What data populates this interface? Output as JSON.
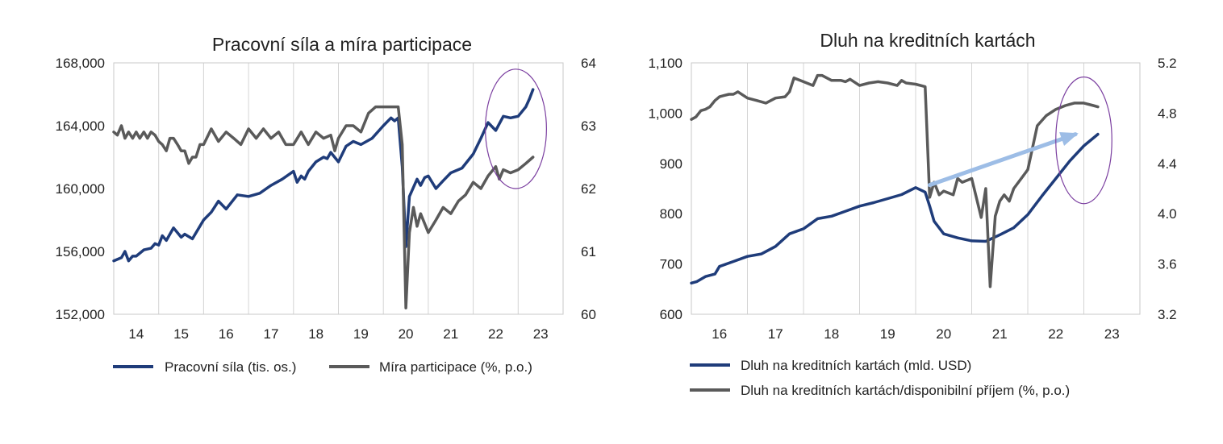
{
  "colors": {
    "series1": "#1f3c7a",
    "series2": "#5a5a5a",
    "annotation": "#7b3fa0",
    "arrow": "#9dbde6",
    "grid": "#d4d4d4",
    "frame": "#c8c8c8"
  },
  "chart_data": [
    {
      "type": "line",
      "title": "Pracovní síla a míra participace",
      "xlabel": "",
      "ylabel": "",
      "x_ticks": [
        "14",
        "15",
        "16",
        "17",
        "18",
        "19",
        "20",
        "21",
        "22",
        "23"
      ],
      "xlim": [
        13.5,
        23.5
      ],
      "ylim_left": [
        152000,
        168000
      ],
      "ylim_right": [
        60,
        64
      ],
      "left_ticks": [
        "152,000",
        "156,000",
        "160,000",
        "164,000",
        "168,000"
      ],
      "right_ticks": [
        "60",
        "61",
        "62",
        "63",
        "64"
      ],
      "grid": "vertical",
      "legend": "bottom",
      "annotation": {
        "type": "ellipse",
        "x_center": 22.45,
        "y_center_left": 163800,
        "x_radius": 0.68,
        "y_radius_left": 3800
      },
      "series": [
        {
          "name": "Pracovní síla (tis. os.)",
          "axis": "left",
          "x": [
            13.5,
            13.67,
            13.75,
            13.83,
            13.92,
            14.0,
            14.17,
            14.33,
            14.42,
            14.5,
            14.58,
            14.67,
            14.83,
            15.0,
            15.08,
            15.25,
            15.5,
            15.67,
            15.83,
            16.0,
            16.25,
            16.5,
            16.75,
            17.0,
            17.25,
            17.5,
            17.58,
            17.67,
            17.75,
            17.83,
            18.0,
            18.17,
            18.25,
            18.33,
            18.5,
            18.67,
            18.83,
            19.0,
            19.25,
            19.5,
            19.67,
            19.75,
            19.83,
            19.92,
            20.0,
            20.08,
            20.25,
            20.33,
            20.42,
            20.5,
            20.67,
            20.83,
            21.0,
            21.25,
            21.5,
            21.67,
            21.83,
            22.0,
            22.17,
            22.33,
            22.5,
            22.67,
            22.75,
            22.83
          ],
          "values": [
            155400,
            155600,
            156000,
            155400,
            155700,
            155700,
            156100,
            156200,
            156500,
            156400,
            157000,
            156700,
            157500,
            156900,
            157100,
            156800,
            158000,
            158500,
            159200,
            158700,
            159600,
            159500,
            159700,
            160200,
            160600,
            161100,
            160400,
            160800,
            160600,
            161100,
            161700,
            162000,
            161900,
            162300,
            161700,
            162700,
            163000,
            162800,
            163200,
            164000,
            164500,
            164300,
            164500,
            161400,
            156300,
            159500,
            160600,
            160200,
            160700,
            160800,
            160000,
            160500,
            161000,
            161300,
            162200,
            163200,
            164200,
            163700,
            164600,
            164500,
            164600,
            165200,
            165700,
            166300
          ]
        },
        {
          "name": "Míra participace (%, p.o.)",
          "axis": "right",
          "x": [
            13.5,
            13.58,
            13.67,
            13.75,
            13.83,
            13.92,
            14.0,
            14.08,
            14.17,
            14.25,
            14.33,
            14.42,
            14.5,
            14.58,
            14.67,
            14.75,
            14.83,
            14.92,
            15.0,
            15.08,
            15.17,
            15.25,
            15.33,
            15.42,
            15.5,
            15.67,
            15.83,
            16.0,
            16.17,
            16.33,
            16.5,
            16.67,
            16.83,
            17.0,
            17.17,
            17.33,
            17.5,
            17.67,
            17.83,
            18.0,
            18.17,
            18.33,
            18.42,
            18.5,
            18.67,
            18.83,
            19.0,
            19.17,
            19.33,
            19.5,
            19.67,
            19.83,
            19.92,
            20.0,
            20.08,
            20.17,
            20.25,
            20.33,
            20.5,
            20.67,
            20.83,
            21.0,
            21.17,
            21.33,
            21.5,
            21.67,
            21.83,
            22.0,
            22.08,
            22.17,
            22.33,
            22.5,
            22.67,
            22.83
          ],
          "values": [
            62.9,
            62.85,
            63.0,
            62.8,
            62.9,
            62.8,
            62.9,
            62.8,
            62.9,
            62.8,
            62.9,
            62.85,
            62.75,
            62.7,
            62.6,
            62.8,
            62.8,
            62.7,
            62.6,
            62.6,
            62.4,
            62.5,
            62.5,
            62.7,
            62.7,
            62.95,
            62.75,
            62.9,
            62.8,
            62.7,
            62.95,
            62.8,
            62.95,
            62.8,
            62.9,
            62.7,
            62.7,
            62.9,
            62.7,
            62.9,
            62.8,
            62.85,
            62.6,
            62.8,
            63.0,
            63.0,
            62.9,
            63.2,
            63.3,
            63.3,
            63.3,
            63.3,
            62.7,
            60.1,
            61.3,
            61.7,
            61.4,
            61.6,
            61.3,
            61.5,
            61.7,
            61.6,
            61.8,
            61.9,
            62.1,
            62.0,
            62.2,
            62.35,
            62.15,
            62.3,
            62.25,
            62.3,
            62.4,
            62.5
          ]
        }
      ]
    },
    {
      "type": "line",
      "title": "Dluh na kreditních kartách",
      "xlabel": "",
      "ylabel": "",
      "x_ticks": [
        "16",
        "17",
        "18",
        "19",
        "20",
        "21",
        "22",
        "23"
      ],
      "xlim": [
        15.5,
        23.5
      ],
      "ylim_left": [
        600,
        1100
      ],
      "ylim_right": [
        3.2,
        5.2
      ],
      "left_ticks": [
        "600",
        "700",
        "800",
        "900",
        "1,000",
        "1,100"
      ],
      "right_ticks": [
        "3.2",
        "3.6",
        "4.0",
        "4.4",
        "4.8",
        "5.2"
      ],
      "grid": "vertical",
      "legend": "bottom",
      "annotation": {
        "type": "ellipse",
        "x_center": 22.5,
        "y_center_left": 946,
        "x_radius": 0.5,
        "y_radius_left": 126
      },
      "arrow": {
        "from": [
          19.75,
          857
        ],
        "to": [
          22.35,
          958
        ]
      },
      "series": [
        {
          "name": "Dluh na kreditních kartách (mld. USD)",
          "axis": "left",
          "x": [
            15.5,
            15.6,
            15.75,
            15.92,
            16.0,
            16.25,
            16.5,
            16.75,
            17.0,
            17.25,
            17.5,
            17.75,
            18.0,
            18.25,
            18.5,
            18.75,
            19.0,
            19.25,
            19.5,
            19.67,
            19.75,
            19.83,
            20.0,
            20.25,
            20.5,
            20.75,
            21.0,
            21.25,
            21.5,
            21.75,
            22.0,
            22.25,
            22.5,
            22.75
          ],
          "values": [
            662,
            665,
            675,
            680,
            695,
            705,
            715,
            720,
            735,
            760,
            770,
            790,
            795,
            805,
            815,
            822,
            830,
            838,
            852,
            843,
            815,
            785,
            760,
            752,
            746,
            745,
            758,
            772,
            798,
            835,
            870,
            905,
            935,
            958
          ]
        },
        {
          "name": "Dluh na kreditních kartách/disponibilní příjem (%, p.o.)",
          "axis": "right",
          "x": [
            15.5,
            15.58,
            15.67,
            15.75,
            15.83,
            15.92,
            16.0,
            16.08,
            16.17,
            16.25,
            16.33,
            16.5,
            16.67,
            16.83,
            17.0,
            17.17,
            17.25,
            17.33,
            17.5,
            17.67,
            17.75,
            17.83,
            18.0,
            18.17,
            18.25,
            18.33,
            18.5,
            18.67,
            18.83,
            19.0,
            19.17,
            19.25,
            19.33,
            19.5,
            19.67,
            19.75,
            19.83,
            19.92,
            20.0,
            20.17,
            20.25,
            20.33,
            20.5,
            20.67,
            20.75,
            20.83,
            20.92,
            21.0,
            21.08,
            21.17,
            21.25,
            21.5,
            21.67,
            21.83,
            22.0,
            22.17,
            22.33,
            22.5,
            22.67,
            22.75
          ],
          "values": [
            4.75,
            4.77,
            4.82,
            4.83,
            4.85,
            4.9,
            4.93,
            4.94,
            4.95,
            4.95,
            4.97,
            4.92,
            4.9,
            4.88,
            4.92,
            4.93,
            4.97,
            5.08,
            5.05,
            5.02,
            5.1,
            5.1,
            5.06,
            5.06,
            5.05,
            5.07,
            5.02,
            5.04,
            5.05,
            5.04,
            5.02,
            5.06,
            5.04,
            5.03,
            5.01,
            4.13,
            4.25,
            4.15,
            4.18,
            4.15,
            4.28,
            4.25,
            4.28,
            3.97,
            4.2,
            3.42,
            3.98,
            4.1,
            4.15,
            4.1,
            4.2,
            4.35,
            4.7,
            4.78,
            4.83,
            4.86,
            4.88,
            4.88,
            4.86,
            4.85
          ]
        }
      ]
    }
  ]
}
